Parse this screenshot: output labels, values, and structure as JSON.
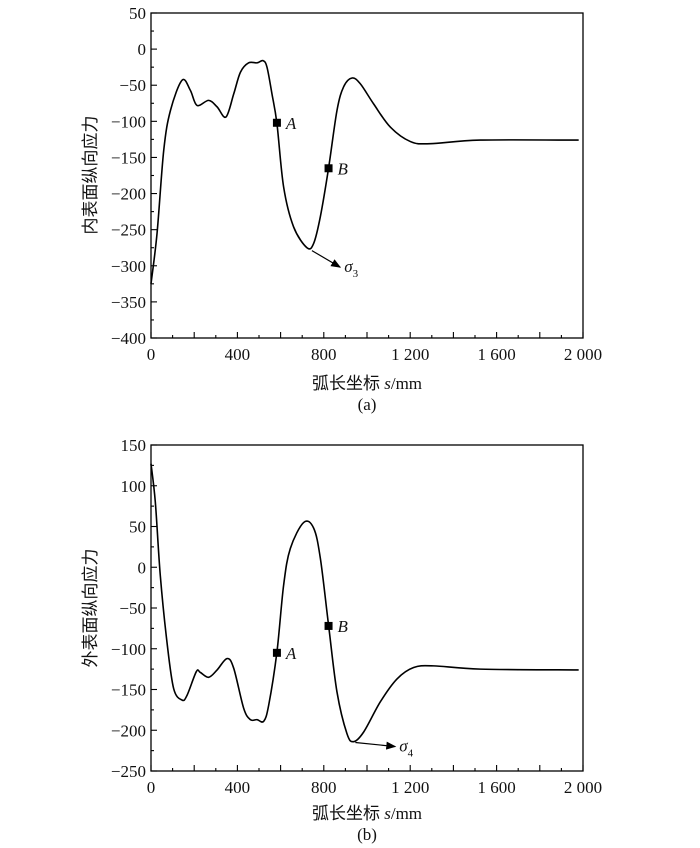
{
  "chart_data": [
    {
      "type": "line",
      "caption": "(a)",
      "xlabel": "弧长坐标 s/mm",
      "xlabel_prefix": "弧长坐标 ",
      "xlabel_var": "s",
      "xlabel_unit": "/mm",
      "ylabel": "内表面纵向应力",
      "xlim": [
        0,
        2000
      ],
      "ylim": [
        -400,
        50
      ],
      "xticks": [
        0,
        400,
        800,
        1200,
        1600,
        2000
      ],
      "xtick_labels": [
        "0",
        "400",
        "800",
        "1 200",
        "1 600",
        "2 000"
      ],
      "yticks": [
        50,
        0,
        -50,
        -100,
        -150,
        -200,
        -250,
        -300,
        -350,
        -400
      ],
      "ytick_labels": [
        "50",
        "0",
        "−50",
        "−100",
        "−150",
        "−200",
        "−250",
        "−300",
        "−350",
        "−400"
      ],
      "grid": false,
      "series": [
        {
          "name": "inner surface longitudinal stress",
          "x": [
            0,
            28,
            59,
            90,
            144,
            182,
            213,
            267,
            306,
            347,
            383,
            414,
            452,
            491,
            519,
            537,
            560,
            583,
            614,
            660,
            722,
            753,
            784,
            822,
            861,
            892,
            931,
            969,
            1031,
            1108,
            1201,
            1293,
            1525,
            1980
          ],
          "y": [
            -325,
            -255,
            -140,
            -85,
            -43,
            -57,
            -78,
            -71,
            -80,
            -94,
            -62,
            -32,
            -19,
            -19,
            -16,
            -25,
            -62,
            -103,
            -191,
            -246,
            -275,
            -269,
            -232,
            -165,
            -85,
            -52,
            -40,
            -48,
            -76,
            -108,
            -128,
            -131,
            -126,
            -126
          ]
        }
      ],
      "markers": [
        {
          "label": "A",
          "x": 583,
          "y": -102
        },
        {
          "label": "B",
          "x": 822,
          "y": -165
        }
      ],
      "annotation": {
        "symbol": "σ",
        "subscript": "3",
        "from": [
          745,
          -279
        ],
        "to": [
          876,
          -302
        ]
      }
    },
    {
      "type": "line",
      "caption": "(b)",
      "xlabel": "弧长坐标 s/mm",
      "xlabel_prefix": "弧长坐标 ",
      "xlabel_var": "s",
      "xlabel_unit": "/mm",
      "ylabel": "外表面纵向应力",
      "xlim": [
        0,
        2000
      ],
      "ylim": [
        -250,
        150
      ],
      "xticks": [
        0,
        400,
        800,
        1200,
        1600,
        2000
      ],
      "xtick_labels": [
        "0",
        "400",
        "800",
        "1 200",
        "1 600",
        "2 000"
      ],
      "yticks": [
        150,
        100,
        50,
        0,
        -50,
        -100,
        -150,
        -200,
        -250
      ],
      "ytick_labels": [
        "150",
        "100",
        "50",
        "0",
        "−50",
        "−100",
        "−150",
        "−200",
        "−250"
      ],
      "grid": false,
      "series": [
        {
          "name": "outer surface longitudinal stress",
          "x": [
            0,
            20,
            43,
            74,
            105,
            144,
            167,
            210,
            228,
            267,
            306,
            352,
            383,
            429,
            460,
            491,
            522,
            545,
            583,
            614,
            645,
            707,
            753,
            784,
            822,
            861,
            907,
            938,
            985,
            1062,
            1139,
            1216,
            1309,
            1525,
            1980
          ],
          "y": [
            127,
            80,
            -10,
            -92,
            -149,
            -163,
            -157,
            -128,
            -129,
            -135,
            -126,
            -112,
            -124,
            -173,
            -187,
            -187,
            -189,
            -169,
            -104,
            -22,
            23,
            55,
            48,
            11,
            -71,
            -153,
            -204,
            -214,
            -202,
            -165,
            -137,
            -123,
            -121,
            -125,
            -126
          ]
        }
      ],
      "markers": [
        {
          "label": "A",
          "x": 583,
          "y": -105
        },
        {
          "label": "B",
          "x": 822,
          "y": -72
        }
      ],
      "annotation": {
        "symbol": "σ",
        "subscript": "4",
        "from": [
          946,
          -215
        ],
        "to": [
          1131,
          -220
        ]
      }
    }
  ]
}
